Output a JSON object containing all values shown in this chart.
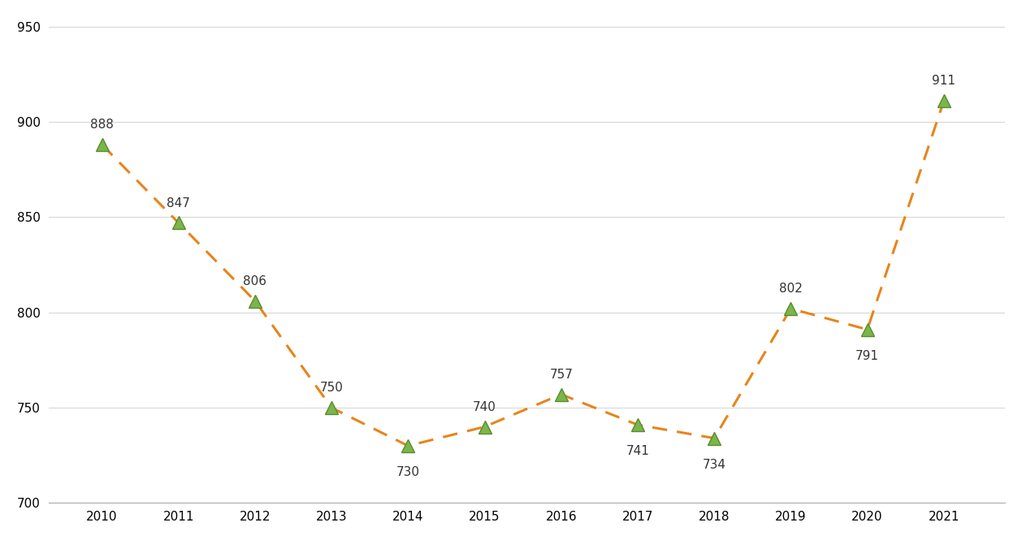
{
  "years": [
    2010,
    2011,
    2012,
    2013,
    2014,
    2015,
    2016,
    2017,
    2018,
    2019,
    2020,
    2021
  ],
  "values": [
    888,
    847,
    806,
    750,
    730,
    740,
    757,
    741,
    734,
    802,
    791,
    911
  ],
  "line_color": "#E8841A",
  "marker_color": "#7AB648",
  "marker_edge_color": "#5A8A30",
  "background_color": "#FFFFFF",
  "ylim": [
    700,
    955
  ],
  "yticks": [
    700,
    750,
    800,
    850,
    900,
    950
  ],
  "label_offset_x": [
    0,
    0,
    0,
    0,
    0,
    0,
    0,
    0,
    0,
    0,
    0,
    0
  ],
  "label_offset_y": [
    12,
    12,
    12,
    12,
    -18,
    12,
    12,
    -18,
    -18,
    12,
    -18,
    12
  ]
}
